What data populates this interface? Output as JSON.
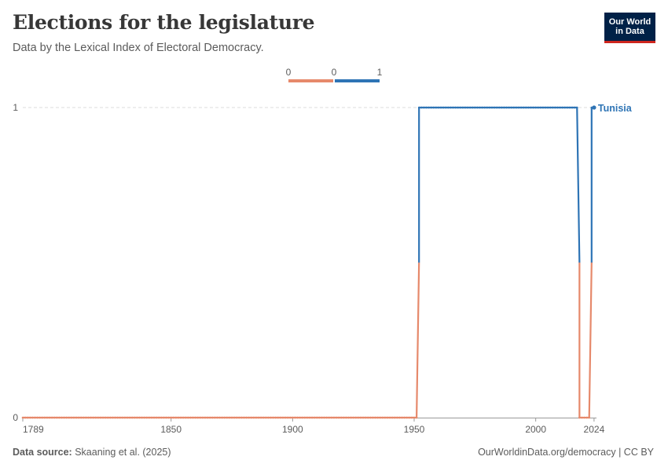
{
  "header": {
    "title": "Elections for the legislature",
    "subtitle": "Data by the Lexical Index of Electoral Democracy.",
    "logo_line1": "Our World",
    "logo_line2": "in Data"
  },
  "footer": {
    "source_label": "Data source:",
    "source_text": "Skaaning et al. (2025)",
    "credit": "OurWorldinData.org/democracy | CC BY"
  },
  "legend": {
    "labels": [
      "0",
      "0",
      "1"
    ],
    "colors": [
      "#e6896b",
      "#2e74b5"
    ]
  },
  "chart_data": {
    "type": "line",
    "title": "Elections for the legislature",
    "subtitle": "Data by the Lexical Index of Electoral Democracy.",
    "x_ticks": [
      1789,
      1850,
      1900,
      1950,
      2000,
      2024
    ],
    "y_ticks": [
      0,
      1
    ],
    "xlim": [
      1789,
      2025
    ],
    "ylim": [
      0,
      1
    ],
    "color_scale": {
      "low": "#e6896b",
      "high": "#2e74b5"
    },
    "series": [
      {
        "name": "Tunisia",
        "segments": [
          {
            "x": [
              1789,
              1951,
              1952,
              2017,
              2018,
              2021,
              2022,
              2023,
              2024
            ],
            "y": [
              0,
              0,
              1,
              1,
              0,
              0,
              0,
              1,
              1
            ]
          }
        ]
      }
    ],
    "grid": "horizontal dashed"
  }
}
